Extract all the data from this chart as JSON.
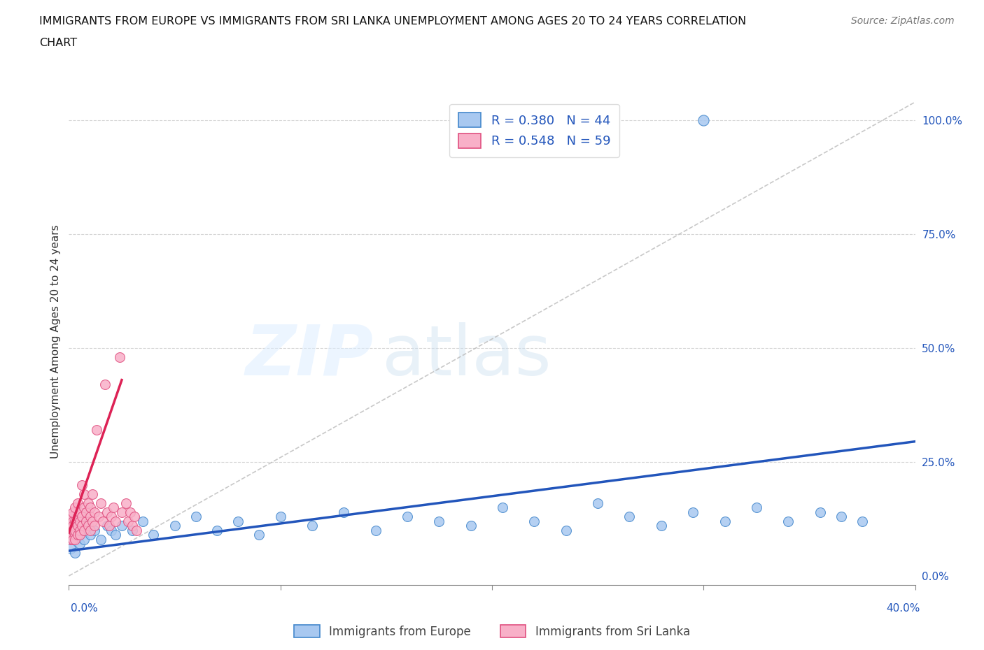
{
  "title_line1": "IMMIGRANTS FROM EUROPE VS IMMIGRANTS FROM SRI LANKA UNEMPLOYMENT AMONG AGES 20 TO 24 YEARS CORRELATION",
  "title_line2": "CHART",
  "source": "Source: ZipAtlas.com",
  "ylabel": "Unemployment Among Ages 20 to 24 years",
  "legend_europe": "Immigrants from Europe",
  "legend_srilanka": "Immigrants from Sri Lanka",
  "R_europe": 0.38,
  "N_europe": 44,
  "R_srilanka": 0.548,
  "N_srilanka": 59,
  "color_europe_fill": "#a8c8f0",
  "color_srilanka_fill": "#f8b0c8",
  "color_europe_edge": "#4488cc",
  "color_srilanka_edge": "#e05080",
  "color_europe_line": "#2255bb",
  "color_srilanka_line": "#dd2255",
  "xlim": [
    0.0,
    0.4
  ],
  "ylim": [
    -0.02,
    1.05
  ],
  "europe_x": [
    0.001,
    0.002,
    0.003,
    0.004,
    0.005,
    0.006,
    0.007,
    0.008,
    0.01,
    0.012,
    0.015,
    0.018,
    0.02,
    0.022,
    0.025,
    0.03,
    0.035,
    0.04,
    0.05,
    0.06,
    0.07,
    0.08,
    0.09,
    0.1,
    0.115,
    0.13,
    0.145,
    0.16,
    0.175,
    0.19,
    0.205,
    0.22,
    0.235,
    0.25,
    0.265,
    0.28,
    0.295,
    0.31,
    0.325,
    0.34,
    0.355,
    0.365,
    0.375,
    0.3
  ],
  "europe_y": [
    0.06,
    0.08,
    0.05,
    0.09,
    0.07,
    0.1,
    0.08,
    0.11,
    0.09,
    0.1,
    0.08,
    0.11,
    0.1,
    0.09,
    0.11,
    0.1,
    0.12,
    0.09,
    0.11,
    0.13,
    0.1,
    0.12,
    0.09,
    0.13,
    0.11,
    0.14,
    0.1,
    0.13,
    0.12,
    0.11,
    0.15,
    0.12,
    0.1,
    0.16,
    0.13,
    0.11,
    0.14,
    0.12,
    0.15,
    0.12,
    0.14,
    0.13,
    0.12,
    1.0
  ],
  "srilanka_x": [
    0.0,
    0.0,
    0.001,
    0.001,
    0.001,
    0.001,
    0.002,
    0.002,
    0.002,
    0.002,
    0.002,
    0.003,
    0.003,
    0.003,
    0.003,
    0.003,
    0.004,
    0.004,
    0.004,
    0.004,
    0.005,
    0.005,
    0.005,
    0.005,
    0.006,
    0.006,
    0.006,
    0.007,
    0.007,
    0.007,
    0.008,
    0.008,
    0.009,
    0.009,
    0.01,
    0.01,
    0.01,
    0.011,
    0.011,
    0.012,
    0.012,
    0.013,
    0.014,
    0.015,
    0.016,
    0.017,
    0.018,
    0.019,
    0.02,
    0.021,
    0.022,
    0.024,
    0.025,
    0.027,
    0.028,
    0.029,
    0.03,
    0.031,
    0.032
  ],
  "srilanka_y": [
    0.1,
    0.12,
    0.08,
    0.11,
    0.09,
    0.13,
    0.1,
    0.12,
    0.08,
    0.14,
    0.11,
    0.09,
    0.12,
    0.1,
    0.15,
    0.08,
    0.11,
    0.13,
    0.09,
    0.16,
    0.1,
    0.12,
    0.14,
    0.09,
    0.2,
    0.11,
    0.13,
    0.15,
    0.1,
    0.18,
    0.12,
    0.14,
    0.11,
    0.16,
    0.13,
    0.1,
    0.15,
    0.12,
    0.18,
    0.14,
    0.11,
    0.32,
    0.13,
    0.16,
    0.12,
    0.42,
    0.14,
    0.11,
    0.13,
    0.15,
    0.12,
    0.48,
    0.14,
    0.16,
    0.12,
    0.14,
    0.11,
    0.13,
    0.1
  ],
  "eu_trendline_x": [
    0.0,
    0.4
  ],
  "eu_trendline_y": [
    0.055,
    0.295
  ],
  "sl_trendline_x": [
    0.0,
    0.025
  ],
  "sl_trendline_y": [
    0.095,
    0.43
  ],
  "diag_line_x": [
    0.0,
    0.4
  ],
  "diag_line_y": [
    0.0,
    1.04
  ]
}
